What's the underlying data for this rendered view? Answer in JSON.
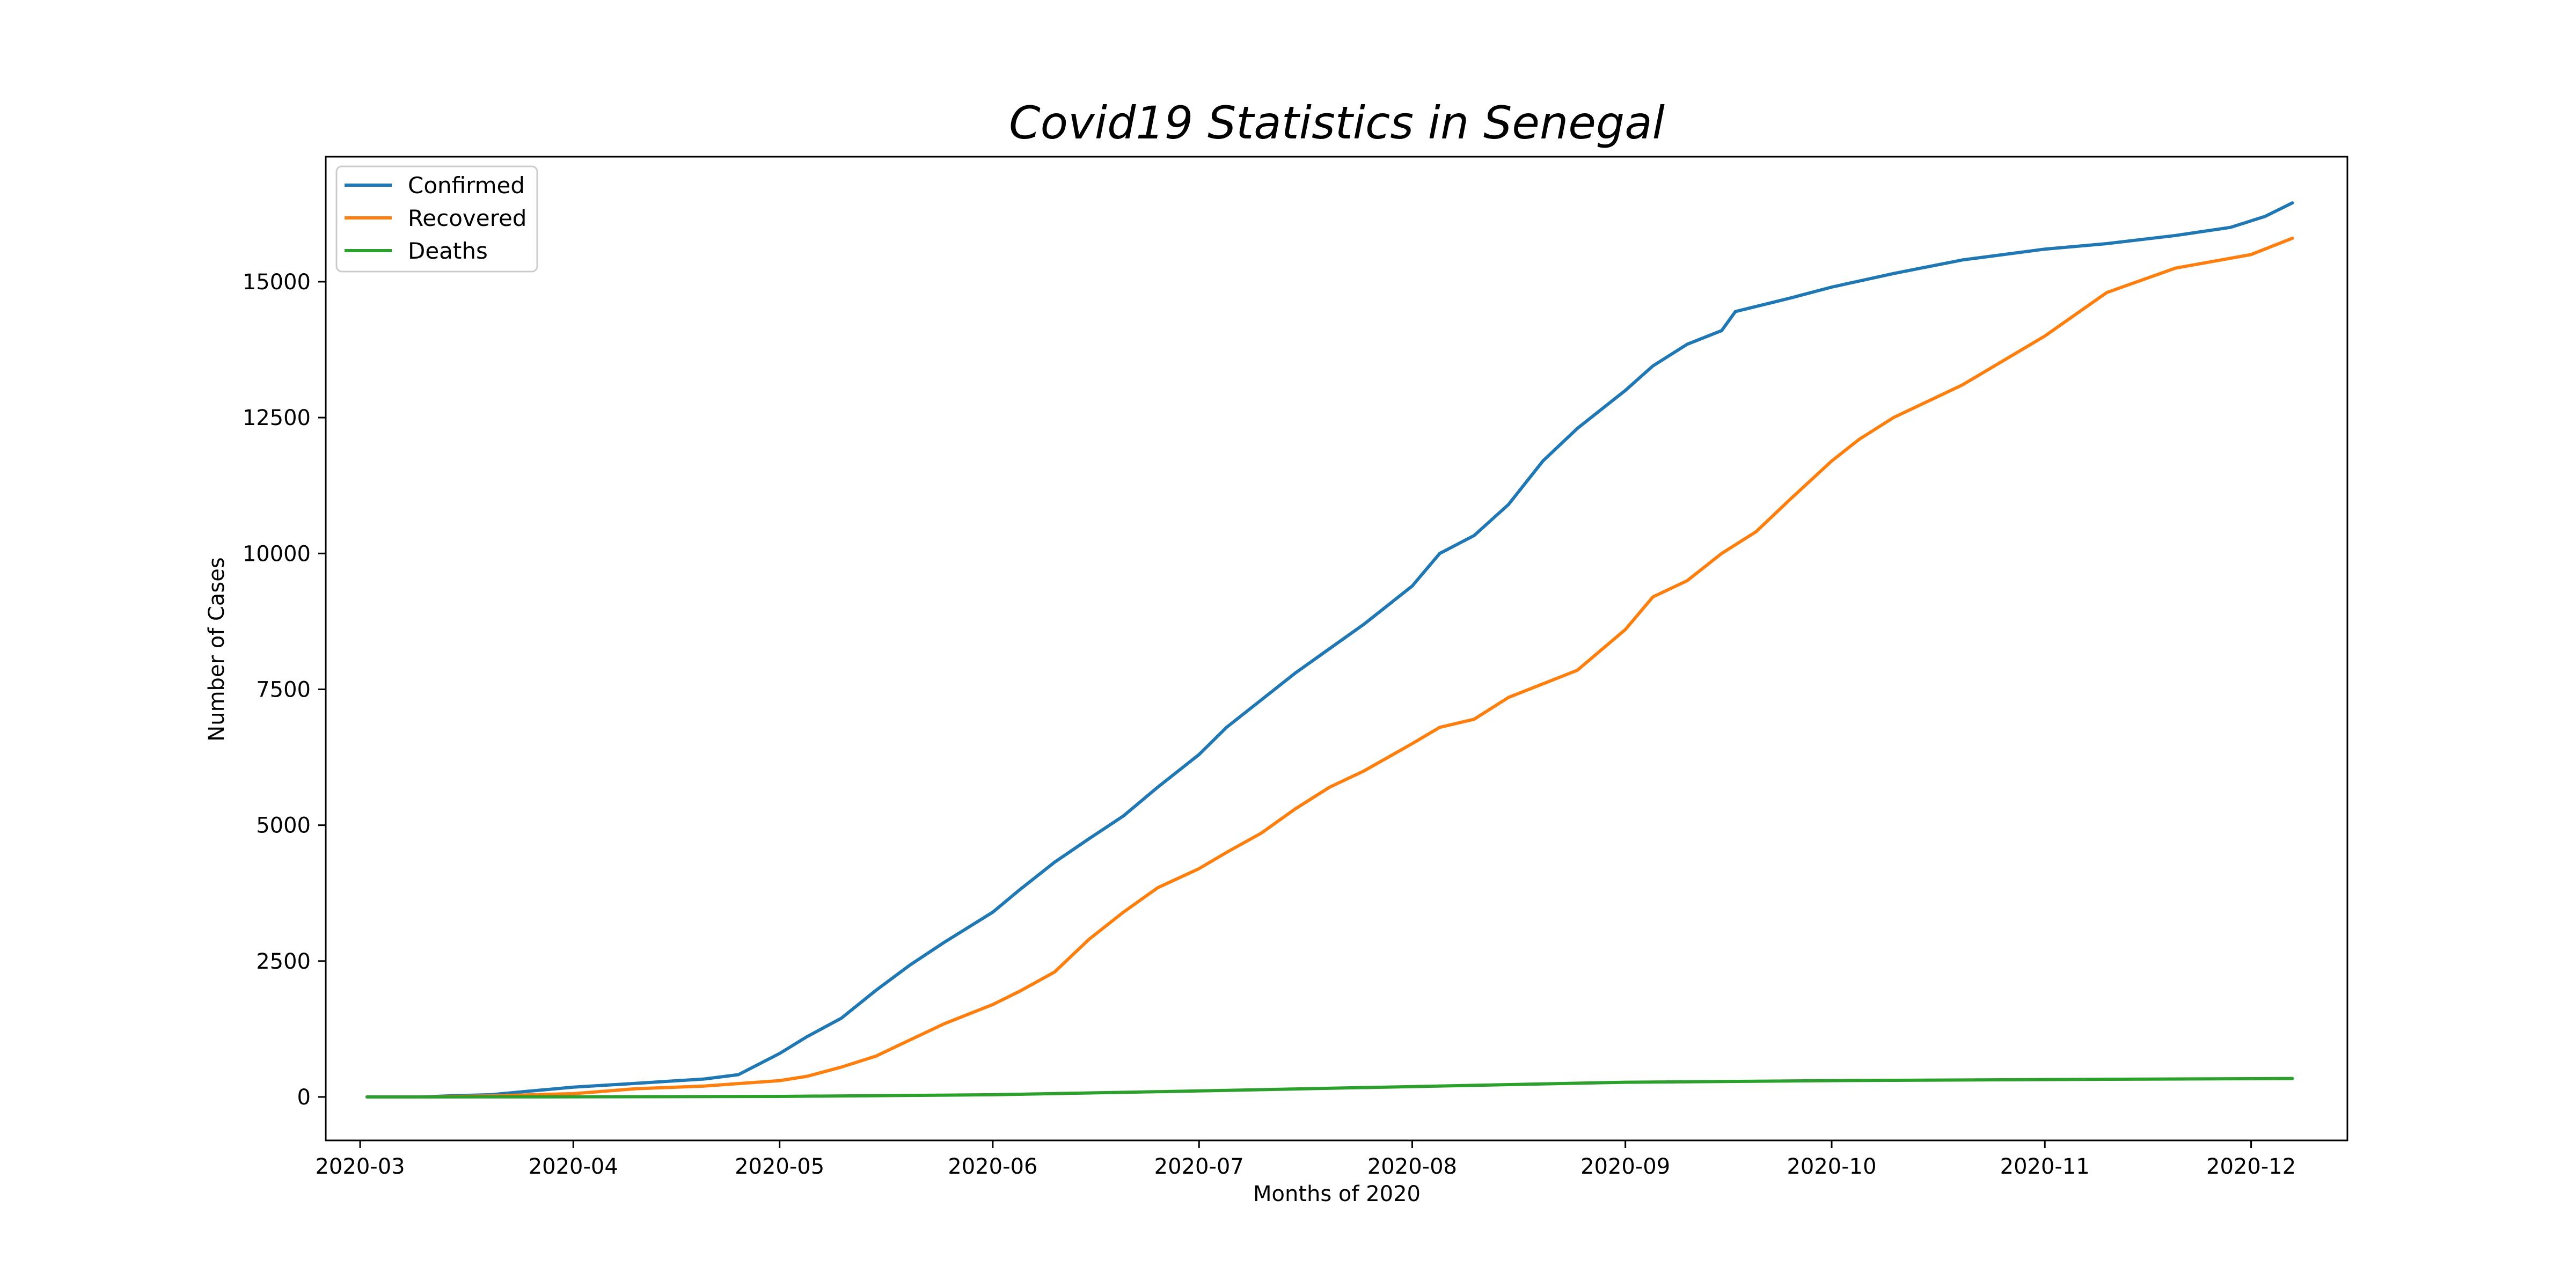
{
  "chart_data": {
    "type": "line",
    "title": "Covid19 Statistics in Senegal",
    "xlabel": "Months of 2020",
    "ylabel": "Number of Cases",
    "x_range": [
      "2020-02-25",
      "2020-12-15"
    ],
    "ylim": [
      -800,
      17300
    ],
    "x_ticks": [
      "2020-03",
      "2020-04",
      "2020-05",
      "2020-06",
      "2020-07",
      "2020-08",
      "2020-09",
      "2020-10",
      "2020-11",
      "2020-12"
    ],
    "y_ticks": [
      0,
      2500,
      5000,
      7500,
      10000,
      12500,
      15000
    ],
    "grid": false,
    "legend_position": "top-left",
    "series": [
      {
        "name": "Confirmed",
        "color": "#1f77b4",
        "points": [
          [
            "2020-03-02",
            0
          ],
          [
            "2020-03-10",
            0
          ],
          [
            "2020-03-15",
            25
          ],
          [
            "2020-03-20",
            40
          ],
          [
            "2020-03-25",
            100
          ],
          [
            "2020-04-01",
            180
          ],
          [
            "2020-04-10",
            250
          ],
          [
            "2020-04-20",
            330
          ],
          [
            "2020-04-25",
            410
          ],
          [
            "2020-05-01",
            800
          ],
          [
            "2020-05-05",
            1110
          ],
          [
            "2020-05-10",
            1450
          ],
          [
            "2020-05-15",
            1960
          ],
          [
            "2020-05-20",
            2430
          ],
          [
            "2020-05-25",
            2850
          ],
          [
            "2020-06-01",
            3400
          ],
          [
            "2020-06-05",
            3820
          ],
          [
            "2020-06-10",
            4320
          ],
          [
            "2020-06-15",
            4750
          ],
          [
            "2020-06-20",
            5170
          ],
          [
            "2020-06-25",
            5700
          ],
          [
            "2020-07-01",
            6300
          ],
          [
            "2020-07-05",
            6800
          ],
          [
            "2020-07-10",
            7300
          ],
          [
            "2020-07-15",
            7800
          ],
          [
            "2020-07-20",
            8250
          ],
          [
            "2020-07-25",
            8700
          ],
          [
            "2020-08-01",
            9400
          ],
          [
            "2020-08-05",
            10000
          ],
          [
            "2020-08-10",
            10330
          ],
          [
            "2020-08-15",
            10900
          ],
          [
            "2020-08-20",
            11700
          ],
          [
            "2020-08-25",
            12300
          ],
          [
            "2020-09-01",
            13000
          ],
          [
            "2020-09-05",
            13450
          ],
          [
            "2020-09-10",
            13850
          ],
          [
            "2020-09-15",
            14100
          ],
          [
            "2020-09-17",
            14450
          ],
          [
            "2020-09-25",
            14700
          ],
          [
            "2020-10-01",
            14900
          ],
          [
            "2020-10-10",
            15150
          ],
          [
            "2020-10-20",
            15400
          ],
          [
            "2020-11-01",
            15600
          ],
          [
            "2020-11-10",
            15700
          ],
          [
            "2020-11-20",
            15850
          ],
          [
            "2020-11-28",
            16000
          ],
          [
            "2020-12-03",
            16200
          ],
          [
            "2020-12-07",
            16450
          ]
        ]
      },
      {
        "name": "Recovered",
        "color": "#ff7f0e",
        "points": [
          [
            "2020-03-02",
            0
          ],
          [
            "2020-03-10",
            0
          ],
          [
            "2020-03-20",
            20
          ],
          [
            "2020-04-01",
            60
          ],
          [
            "2020-04-10",
            150
          ],
          [
            "2020-04-20",
            200
          ],
          [
            "2020-05-01",
            300
          ],
          [
            "2020-05-05",
            380
          ],
          [
            "2020-05-10",
            550
          ],
          [
            "2020-05-15",
            750
          ],
          [
            "2020-05-20",
            1050
          ],
          [
            "2020-05-25",
            1350
          ],
          [
            "2020-06-01",
            1700
          ],
          [
            "2020-06-05",
            1950
          ],
          [
            "2020-06-10",
            2300
          ],
          [
            "2020-06-15",
            2900
          ],
          [
            "2020-06-20",
            3400
          ],
          [
            "2020-06-25",
            3850
          ],
          [
            "2020-07-01",
            4200
          ],
          [
            "2020-07-05",
            4500
          ],
          [
            "2020-07-10",
            4850
          ],
          [
            "2020-07-15",
            5300
          ],
          [
            "2020-07-20",
            5700
          ],
          [
            "2020-07-25",
            6000
          ],
          [
            "2020-08-01",
            6500
          ],
          [
            "2020-08-05",
            6800
          ],
          [
            "2020-08-10",
            6950
          ],
          [
            "2020-08-15",
            7350
          ],
          [
            "2020-08-20",
            7600
          ],
          [
            "2020-08-25",
            7850
          ],
          [
            "2020-09-01",
            8600
          ],
          [
            "2020-09-05",
            9200
          ],
          [
            "2020-09-10",
            9500
          ],
          [
            "2020-09-15",
            10000
          ],
          [
            "2020-09-20",
            10400
          ],
          [
            "2020-09-25",
            11000
          ],
          [
            "2020-10-01",
            11700
          ],
          [
            "2020-10-05",
            12100
          ],
          [
            "2020-10-10",
            12500
          ],
          [
            "2020-10-20",
            13100
          ],
          [
            "2020-11-01",
            14000
          ],
          [
            "2020-11-10",
            14800
          ],
          [
            "2020-11-20",
            15250
          ],
          [
            "2020-12-01",
            15500
          ],
          [
            "2020-12-07",
            15800
          ]
        ]
      },
      {
        "name": "Deaths",
        "color": "#2ca02c",
        "points": [
          [
            "2020-03-02",
            0
          ],
          [
            "2020-04-01",
            2
          ],
          [
            "2020-05-01",
            10
          ],
          [
            "2020-06-01",
            40
          ],
          [
            "2020-07-01",
            110
          ],
          [
            "2020-08-01",
            190
          ],
          [
            "2020-09-01",
            270
          ],
          [
            "2020-10-01",
            300
          ],
          [
            "2020-11-01",
            320
          ],
          [
            "2020-12-07",
            340
          ]
        ]
      }
    ]
  }
}
